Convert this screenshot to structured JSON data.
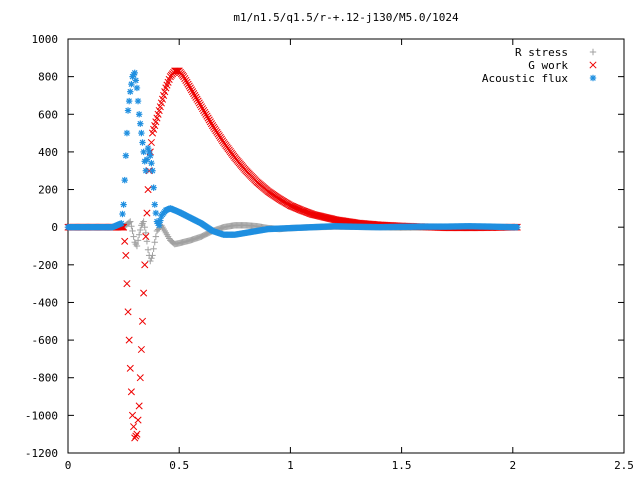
{
  "chart_data": {
    "type": "scatter",
    "title": "m1/n1.5/q1.5/r-+.12-j130/M5.0/1024",
    "xlabel": "",
    "ylabel": "",
    "xlim": [
      0,
      2.5
    ],
    "ylim": [
      -1200,
      1000
    ],
    "xticks": [
      "0",
      "0.5",
      "1",
      "1.5",
      "2",
      "2.5"
    ],
    "yticks": [
      "1000",
      "800",
      "600",
      "400",
      "200",
      "0",
      "-200",
      "-400",
      "-600",
      "-800",
      "-1000",
      "-1200"
    ],
    "grid": false,
    "legend_position": "top-right",
    "series": [
      {
        "name": "R stress",
        "marker": "+",
        "color": "#a0a0a0",
        "points": [
          [
            0.0,
            0
          ],
          [
            0.1,
            0
          ],
          [
            0.2,
            0
          ],
          [
            0.25,
            2
          ],
          [
            0.27,
            20
          ],
          [
            0.28,
            30
          ],
          [
            0.29,
            -20
          ],
          [
            0.3,
            -80
          ],
          [
            0.31,
            -100
          ],
          [
            0.32,
            -40
          ],
          [
            0.33,
            10
          ],
          [
            0.34,
            30
          ],
          [
            0.35,
            -30
          ],
          [
            0.36,
            -120
          ],
          [
            0.37,
            -180
          ],
          [
            0.38,
            -150
          ],
          [
            0.39,
            -80
          ],
          [
            0.4,
            -20
          ],
          [
            0.42,
            10
          ],
          [
            0.44,
            -30
          ],
          [
            0.46,
            -70
          ],
          [
            0.48,
            -90
          ],
          [
            0.5,
            -85
          ],
          [
            0.55,
            -70
          ],
          [
            0.6,
            -50
          ],
          [
            0.65,
            -20
          ],
          [
            0.7,
            0
          ],
          [
            0.75,
            10
          ],
          [
            0.8,
            10
          ],
          [
            0.85,
            5
          ],
          [
            0.9,
            -5
          ],
          [
            0.95,
            -10
          ],
          [
            1.0,
            -5
          ],
          [
            1.1,
            0
          ],
          [
            1.2,
            3
          ],
          [
            1.3,
            2
          ],
          [
            1.4,
            0
          ],
          [
            1.5,
            -2
          ],
          [
            1.6,
            -1
          ],
          [
            1.7,
            0
          ],
          [
            1.8,
            1
          ],
          [
            1.9,
            0
          ],
          [
            2.0,
            0
          ],
          [
            2.02,
            0
          ]
        ]
      },
      {
        "name": "G work",
        "marker": "x",
        "color": "#ee0000",
        "points": [
          [
            0.0,
            0
          ],
          [
            0.1,
            0
          ],
          [
            0.2,
            0
          ],
          [
            0.25,
            0
          ],
          [
            0.26,
            -150
          ],
          [
            0.27,
            -450
          ],
          [
            0.28,
            -750
          ],
          [
            0.29,
            -1000
          ],
          [
            0.3,
            -1120
          ],
          [
            0.31,
            -1100
          ],
          [
            0.32,
            -950
          ],
          [
            0.33,
            -650
          ],
          [
            0.34,
            -350
          ],
          [
            0.35,
            -50
          ],
          [
            0.36,
            200
          ],
          [
            0.37,
            400
          ],
          [
            0.38,
            500
          ],
          [
            0.4,
            580
          ],
          [
            0.42,
            660
          ],
          [
            0.44,
            740
          ],
          [
            0.46,
            800
          ],
          [
            0.48,
            830
          ],
          [
            0.5,
            830
          ],
          [
            0.52,
            800
          ],
          [
            0.55,
            740
          ],
          [
            0.6,
            640
          ],
          [
            0.65,
            540
          ],
          [
            0.7,
            450
          ],
          [
            0.75,
            370
          ],
          [
            0.8,
            300
          ],
          [
            0.85,
            240
          ],
          [
            0.9,
            190
          ],
          [
            0.95,
            150
          ],
          [
            1.0,
            115
          ],
          [
            1.05,
            90
          ],
          [
            1.1,
            68
          ],
          [
            1.2,
            40
          ],
          [
            1.3,
            22
          ],
          [
            1.4,
            12
          ],
          [
            1.5,
            6
          ],
          [
            1.6,
            2
          ],
          [
            1.7,
            -3
          ],
          [
            1.8,
            -3
          ],
          [
            1.9,
            -2
          ],
          [
            2.0,
            0
          ],
          [
            2.02,
            0
          ]
        ]
      },
      {
        "name": "Acoustic flux",
        "marker": "*",
        "color": "#1f8fe0",
        "points": [
          [
            0.0,
            0
          ],
          [
            0.1,
            0
          ],
          [
            0.2,
            0
          ],
          [
            0.24,
            20
          ],
          [
            0.25,
            120
          ],
          [
            0.26,
            380
          ],
          [
            0.27,
            620
          ],
          [
            0.28,
            720
          ],
          [
            0.29,
            800
          ],
          [
            0.3,
            820
          ],
          [
            0.31,
            740
          ],
          [
            0.32,
            600
          ],
          [
            0.33,
            500
          ],
          [
            0.34,
            400
          ],
          [
            0.35,
            300
          ],
          [
            0.36,
            420
          ],
          [
            0.37,
            380
          ],
          [
            0.38,
            300
          ],
          [
            0.39,
            120
          ],
          [
            0.4,
            30
          ],
          [
            0.41,
            10
          ],
          [
            0.42,
            60
          ],
          [
            0.44,
            90
          ],
          [
            0.46,
            100
          ],
          [
            0.48,
            90
          ],
          [
            0.5,
            80
          ],
          [
            0.55,
            50
          ],
          [
            0.6,
            20
          ],
          [
            0.65,
            -20
          ],
          [
            0.7,
            -40
          ],
          [
            0.75,
            -40
          ],
          [
            0.8,
            -30
          ],
          [
            0.85,
            -20
          ],
          [
            0.9,
            -10
          ],
          [
            1.0,
            -5
          ],
          [
            1.1,
            0
          ],
          [
            1.2,
            5
          ],
          [
            1.3,
            2
          ],
          [
            1.4,
            0
          ],
          [
            1.5,
            2
          ],
          [
            1.6,
            3
          ],
          [
            1.7,
            3
          ],
          [
            1.8,
            5
          ],
          [
            1.9,
            3
          ],
          [
            2.0,
            0
          ],
          [
            2.02,
            0
          ]
        ]
      }
    ]
  }
}
